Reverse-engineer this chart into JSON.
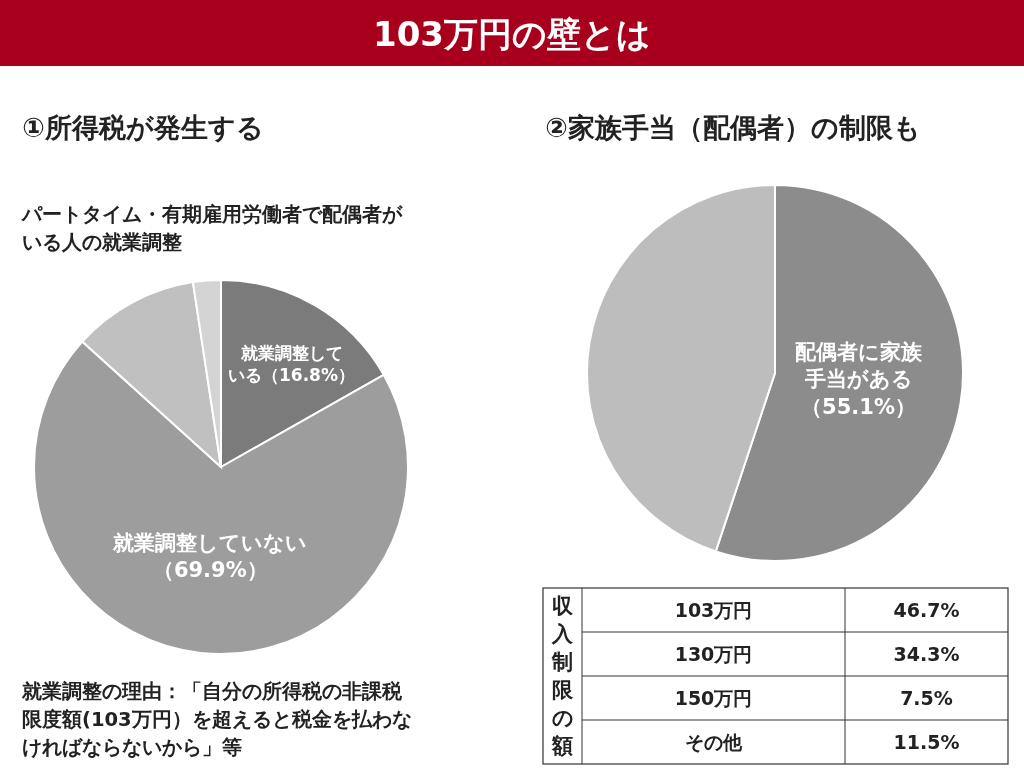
{
  "chart_data": [
    {
      "type": "other",
      "title": "103万円の壁とは"
    },
    {
      "type": "pie",
      "title": "①所得税が発生する",
      "subtitle": "パートタイム・有期雇用労働者で配偶者がいる人の就業調整",
      "categories": [
        "就業調整している",
        "就業調整していない",
        null,
        null
      ],
      "values": [
        16.8,
        69.9,
        10.9,
        2.4
      ],
      "value_labels": [
        "（16.8%）",
        "（69.9%）",
        null,
        null
      ],
      "colors": [
        "#7b7b7b",
        "#9d9d9d",
        "#c0c0c0",
        "#d4d4d4"
      ],
      "annotations": [
        "就業調整の理由：「自分の所得税の非課税限度額(103万円）を超えると税金を払わなければならないから」等"
      ]
    },
    {
      "type": "pie",
      "title": "②家族手当（配偶者）の制限も",
      "categories": [
        "配偶者に家族手当がある",
        null
      ],
      "values": [
        55.1,
        44.9
      ],
      "value_labels": [
        "（55.1%）",
        null
      ],
      "colors": [
        "#8c8c8c",
        "#bdbdbd"
      ]
    },
    {
      "type": "other",
      "ylabel": "収入制限の額",
      "categories": [
        "103万円",
        "130万円",
        "150万円",
        "その他"
      ],
      "values": [
        46.7,
        34.3,
        7.5,
        11.5
      ],
      "value_labels": [
        "46.7%",
        "34.3%",
        "7.5%",
        "11.5%"
      ]
    }
  ]
}
